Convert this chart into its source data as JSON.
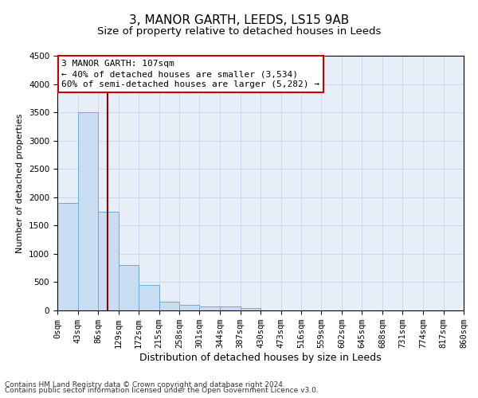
{
  "title1": "3, MANOR GARTH, LEEDS, LS15 9AB",
  "title2": "Size of property relative to detached houses in Leeds",
  "xlabel": "Distribution of detached houses by size in Leeds",
  "ylabel": "Number of detached properties",
  "bin_edges": [
    0,
    43,
    86,
    129,
    172,
    215,
    258,
    301,
    344,
    387,
    430,
    473,
    516,
    559,
    602,
    645,
    688,
    731,
    774,
    817,
    860
  ],
  "bar_heights": [
    1900,
    3500,
    1750,
    800,
    450,
    150,
    100,
    75,
    65,
    40,
    0,
    0,
    0,
    0,
    0,
    0,
    0,
    0,
    0,
    0
  ],
  "bar_color": "#c9ddf2",
  "bar_edge_color": "#6aabd8",
  "vline_x": 107,
  "vline_color": "#8b0000",
  "annotation_line1": "3 MANOR GARTH: 107sqm",
  "annotation_line2": "← 40% of detached houses are smaller (3,534)",
  "annotation_line3": "60% of semi-detached houses are larger (5,282) →",
  "annotation_box_color": "#cc0000",
  "ylim": [
    0,
    4500
  ],
  "yticks": [
    0,
    500,
    1000,
    1500,
    2000,
    2500,
    3000,
    3500,
    4000,
    4500
  ],
  "grid_color": "#c8d4e8",
  "bg_color": "#e8eef8",
  "footer1": "Contains HM Land Registry data © Crown copyright and database right 2024.",
  "footer2": "Contains public sector information licensed under the Open Government Licence v3.0.",
  "title1_fontsize": 11,
  "title2_fontsize": 9.5,
  "xlabel_fontsize": 9,
  "ylabel_fontsize": 8,
  "tick_fontsize": 7.5,
  "annotation_fontsize": 8,
  "footer_fontsize": 6.5
}
